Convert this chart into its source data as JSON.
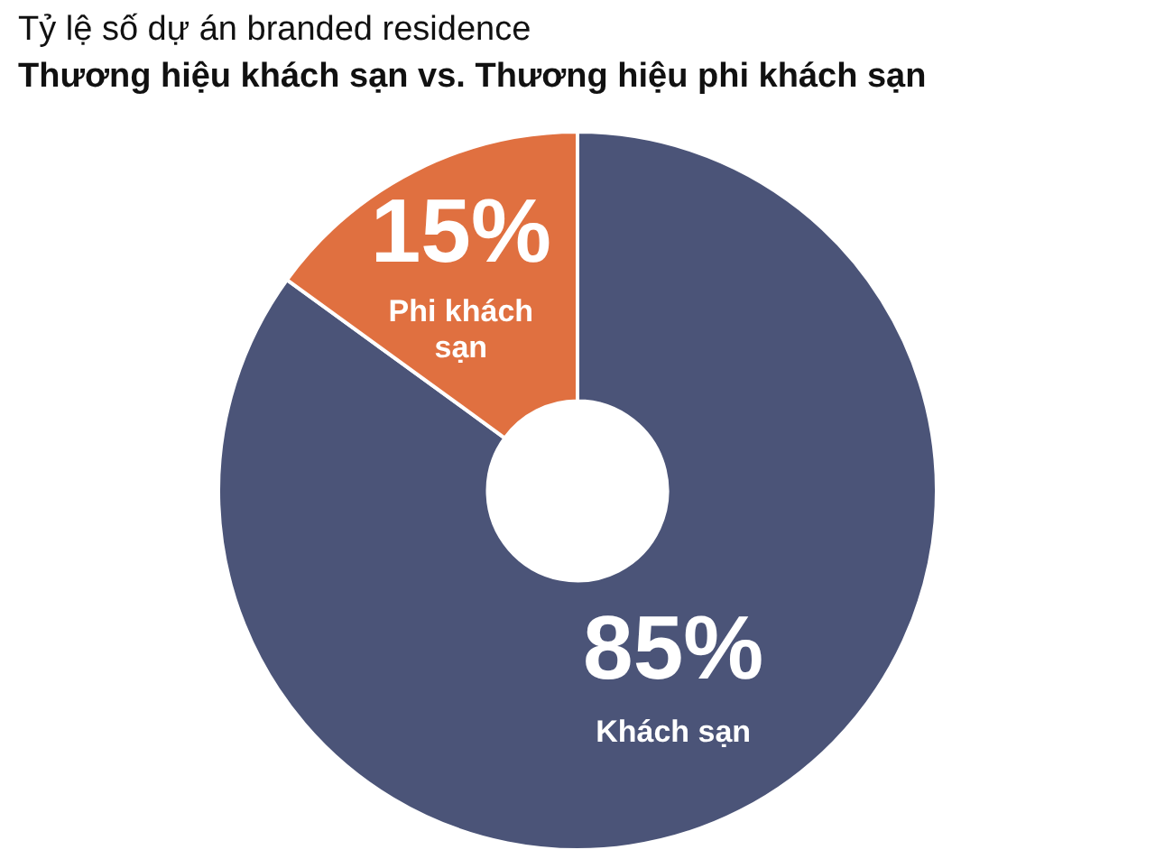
{
  "chart_data": {
    "type": "donut",
    "title": "Tỷ lệ số dự án branded residence",
    "subtitle": "Thương hiệu khách sạn vs. Thương hiệu phi khách sạn",
    "categories": [
      "Khách sạn",
      "Phi khách sạn"
    ],
    "values": [
      85,
      15
    ],
    "colors": [
      "#4b5478",
      "#e07040"
    ],
    "value_labels": [
      "85%",
      "15%"
    ],
    "legend": false
  }
}
